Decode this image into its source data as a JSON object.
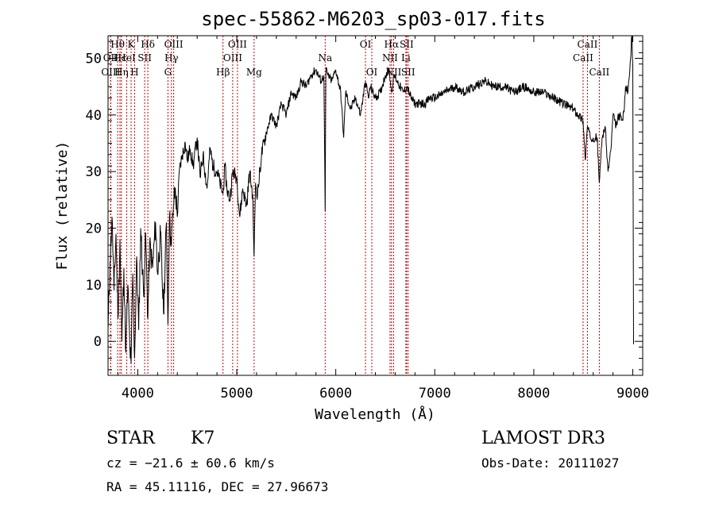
{
  "chart_data": {
    "type": "line",
    "title": "spec-55862-M6203_sp03-017.fits",
    "xlabel": "Wavelength (Å)",
    "ylabel": "Flux (relative)",
    "xlim": [
      3700,
      9100
    ],
    "ylim": [
      -6,
      54
    ],
    "xticks": [
      4000,
      5000,
      6000,
      7000,
      8000,
      9000
    ],
    "xtick_labels": [
      "4000",
      "5000",
      "6000",
      "7000",
      "8000",
      "9000"
    ],
    "yticks": [
      0,
      10,
      20,
      30,
      40,
      50
    ],
    "ytick_labels": [
      "0",
      "10",
      "20",
      "30",
      "40",
      "50"
    ],
    "series": [
      {
        "name": "flux",
        "x": [
          3700,
          3720,
          3740,
          3760,
          3780,
          3800,
          3820,
          3840,
          3860,
          3880,
          3900,
          3920,
          3933,
          3950,
          3968,
          3990,
          4010,
          4030,
          4060,
          4080,
          4102,
          4120,
          4150,
          4180,
          4200,
          4230,
          4260,
          4290,
          4305,
          4320,
          4340,
          4360,
          4380,
          4400,
          4420,
          4450,
          4480,
          4500,
          4530,
          4560,
          4600,
          4630,
          4660,
          4700,
          4730,
          4760,
          4800,
          4830,
          4861,
          4880,
          4900,
          4930,
          4960,
          5000,
          5030,
          5060,
          5100,
          5130,
          5160,
          5175,
          5190,
          5210,
          5250,
          5300,
          5350,
          5400,
          5450,
          5500,
          5550,
          5600,
          5650,
          5700,
          5750,
          5800,
          5850,
          5880,
          5893,
          5900,
          5920,
          5960,
          6000,
          6050,
          6080,
          6100,
          6150,
          6200,
          6250,
          6300,
          6330,
          6350,
          6400,
          6450,
          6500,
          6540,
          6563,
          6590,
          6620,
          6680,
          6720,
          6760,
          6800,
          6850,
          6900,
          6950,
          7000,
          7100,
          7200,
          7300,
          7400,
          7500,
          7600,
          7700,
          7800,
          7900,
          8000,
          8100,
          8200,
          8300,
          8400,
          8450,
          8498,
          8520,
          8542,
          8570,
          8600,
          8640,
          8662,
          8690,
          8720,
          8750,
          8780,
          8800,
          8830,
          8860,
          8900,
          8930,
          8950,
          8970,
          8990,
          9000
        ],
        "y": [
          2,
          14,
          22,
          9,
          19,
          4,
          18,
          0,
          13,
          -2,
          10,
          -1,
          -4,
          12,
          -3,
          15,
          2,
          20,
          8,
          19,
          4,
          17,
          13,
          21,
          12,
          19,
          5,
          21,
          3,
          22,
          17,
          24,
          27,
          22,
          30,
          33,
          35,
          32,
          34,
          31,
          36,
          29,
          33,
          27,
          34,
          31,
          30,
          28,
          26,
          31,
          27,
          25,
          30,
          29,
          22,
          27,
          24,
          30,
          26,
          15,
          28,
          26,
          33,
          37,
          40,
          38,
          42,
          40,
          44,
          43,
          46,
          45,
          47,
          48,
          46,
          47,
          23,
          48,
          47,
          46,
          48,
          44,
          36,
          44,
          41,
          43,
          40,
          46,
          43,
          45,
          43,
          44,
          47,
          48,
          44,
          47,
          46,
          44,
          45,
          43,
          42,
          42,
          42,
          43,
          43,
          44,
          45,
          44,
          45,
          46,
          45,
          45,
          44,
          45,
          44,
          44,
          43,
          42,
          41,
          40,
          39,
          32,
          38,
          36,
          36,
          36,
          28,
          36,
          38,
          30,
          34,
          40,
          38,
          40,
          39,
          45,
          44,
          48,
          54,
          49
        ]
      }
    ],
    "lines": [
      {
        "name": "OIII",
        "wl": 3727,
        "row": 2
      },
      {
        "name": "Hθ",
        "wl": 3797,
        "row": 0
      },
      {
        "name": "OII",
        "wl": 3727,
        "row": 1
      },
      {
        "name": "Hε",
        "wl": 3820,
        "row": 1
      },
      {
        "name": "Hη",
        "wl": 3835,
        "row": 2
      },
      {
        "name": "K",
        "wl": 3933,
        "row": 0
      },
      {
        "name": "HeI",
        "wl": 3889,
        "row": 1
      },
      {
        "name": "H",
        "wl": 3968,
        "row": 2
      },
      {
        "name": "SII",
        "wl": 4070,
        "row": 1
      },
      {
        "name": "Hδ",
        "wl": 4102,
        "row": 0
      },
      {
        "name": "OIII",
        "wl": 4363,
        "row": 0
      },
      {
        "name": "Hγ",
        "wl": 4340,
        "row": 1
      },
      {
        "name": "G",
        "wl": 4305,
        "row": 2
      },
      {
        "name": "Hβ",
        "wl": 4861,
        "row": 2
      },
      {
        "name": "OIII",
        "wl": 5007,
        "row": 0
      },
      {
        "name": "OIII",
        "wl": 4959,
        "row": 1
      },
      {
        "name": "Mg",
        "wl": 5175,
        "row": 2
      },
      {
        "name": "Na",
        "wl": 5893,
        "row": 1
      },
      {
        "name": "OI",
        "wl": 6300,
        "row": 0
      },
      {
        "name": "OI",
        "wl": 6364,
        "row": 2
      },
      {
        "name": "Hα",
        "wl": 6563,
        "row": 0
      },
      {
        "name": "NII",
        "wl": 6548,
        "row": 1
      },
      {
        "name": "NII",
        "wl": 6584,
        "row": 2
      },
      {
        "name": "SII",
        "wl": 6716,
        "row": 0
      },
      {
        "name": "Li",
        "wl": 6708,
        "row": 1
      },
      {
        "name": "SII",
        "wl": 6731,
        "row": 2
      },
      {
        "name": "CaII",
        "wl": 8542,
        "row": 0
      },
      {
        "name": "CaII",
        "wl": 8498,
        "row": 1
      },
      {
        "name": "CaII",
        "wl": 8662,
        "row": 2
      }
    ],
    "marker_color": "#cc0000",
    "line_color": "#000000"
  },
  "info": {
    "class": "STAR",
    "subclass": "K7",
    "survey": "LAMOST DR3",
    "cz": "cz = −21.6 ± 60.6 km/s",
    "obs_date": "Obs-Date: 20111027",
    "radec": "RA =  45.11116, DEC =  27.96673"
  }
}
